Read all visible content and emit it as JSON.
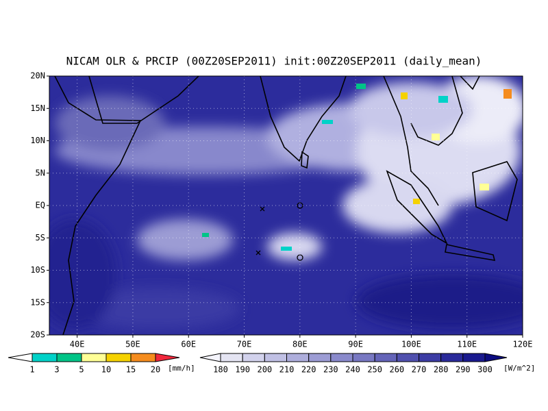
{
  "title": "NICAM OLR & PRCIP (00Z20SEP2011) init:00Z20SEP2011 (daily_mean)",
  "map": {
    "lonlim": [
      35,
      120
    ],
    "latlim": [
      -20,
      20
    ],
    "lon_ticks": [
      {
        "value": 40,
        "label": "40E"
      },
      {
        "value": 50,
        "label": "50E"
      },
      {
        "value": 60,
        "label": "60E"
      },
      {
        "value": 70,
        "label": "70E"
      },
      {
        "value": 80,
        "label": "80E"
      },
      {
        "value": 90,
        "label": "90E"
      },
      {
        "value": 100,
        "label": "100E"
      },
      {
        "value": 110,
        "label": "110E"
      },
      {
        "value": 120,
        "label": "120E"
      }
    ],
    "lat_ticks": [
      {
        "value": 20,
        "label": "20N"
      },
      {
        "value": 15,
        "label": "15N"
      },
      {
        "value": 10,
        "label": "10N"
      },
      {
        "value": 5,
        "label": "5N"
      },
      {
        "value": 0,
        "label": "EQ"
      },
      {
        "value": -5,
        "label": "5S"
      },
      {
        "value": -10,
        "label": "10S"
      },
      {
        "value": -15,
        "label": "15S"
      },
      {
        "value": -20,
        "label": "20S"
      }
    ]
  },
  "precip_colorbar": {
    "ticks": [
      1,
      3,
      5,
      10,
      15,
      20
    ],
    "colors": [
      "#ffffff",
      "#00d2c8",
      "#00c487",
      "#ffff96",
      "#f5d200",
      "#f58c1e",
      "#f0283c"
    ],
    "units": "[mm/h]"
  },
  "olr_colorbar": {
    "ticks": [
      180,
      190,
      200,
      210,
      220,
      230,
      240,
      250,
      260,
      270,
      280,
      290,
      300
    ],
    "colors": [
      "#f4f4fc",
      "#e4e4f2",
      "#d2d2ec",
      "#c0c0e4",
      "#aeaedc",
      "#9c9cd4",
      "#8a8acc",
      "#7878c2",
      "#6464b8",
      "#5050ae",
      "#3c3ca4",
      "#2a2a9a",
      "#1a1a8e",
      "#0c0c80"
    ],
    "units": "[W/m^2]"
  }
}
